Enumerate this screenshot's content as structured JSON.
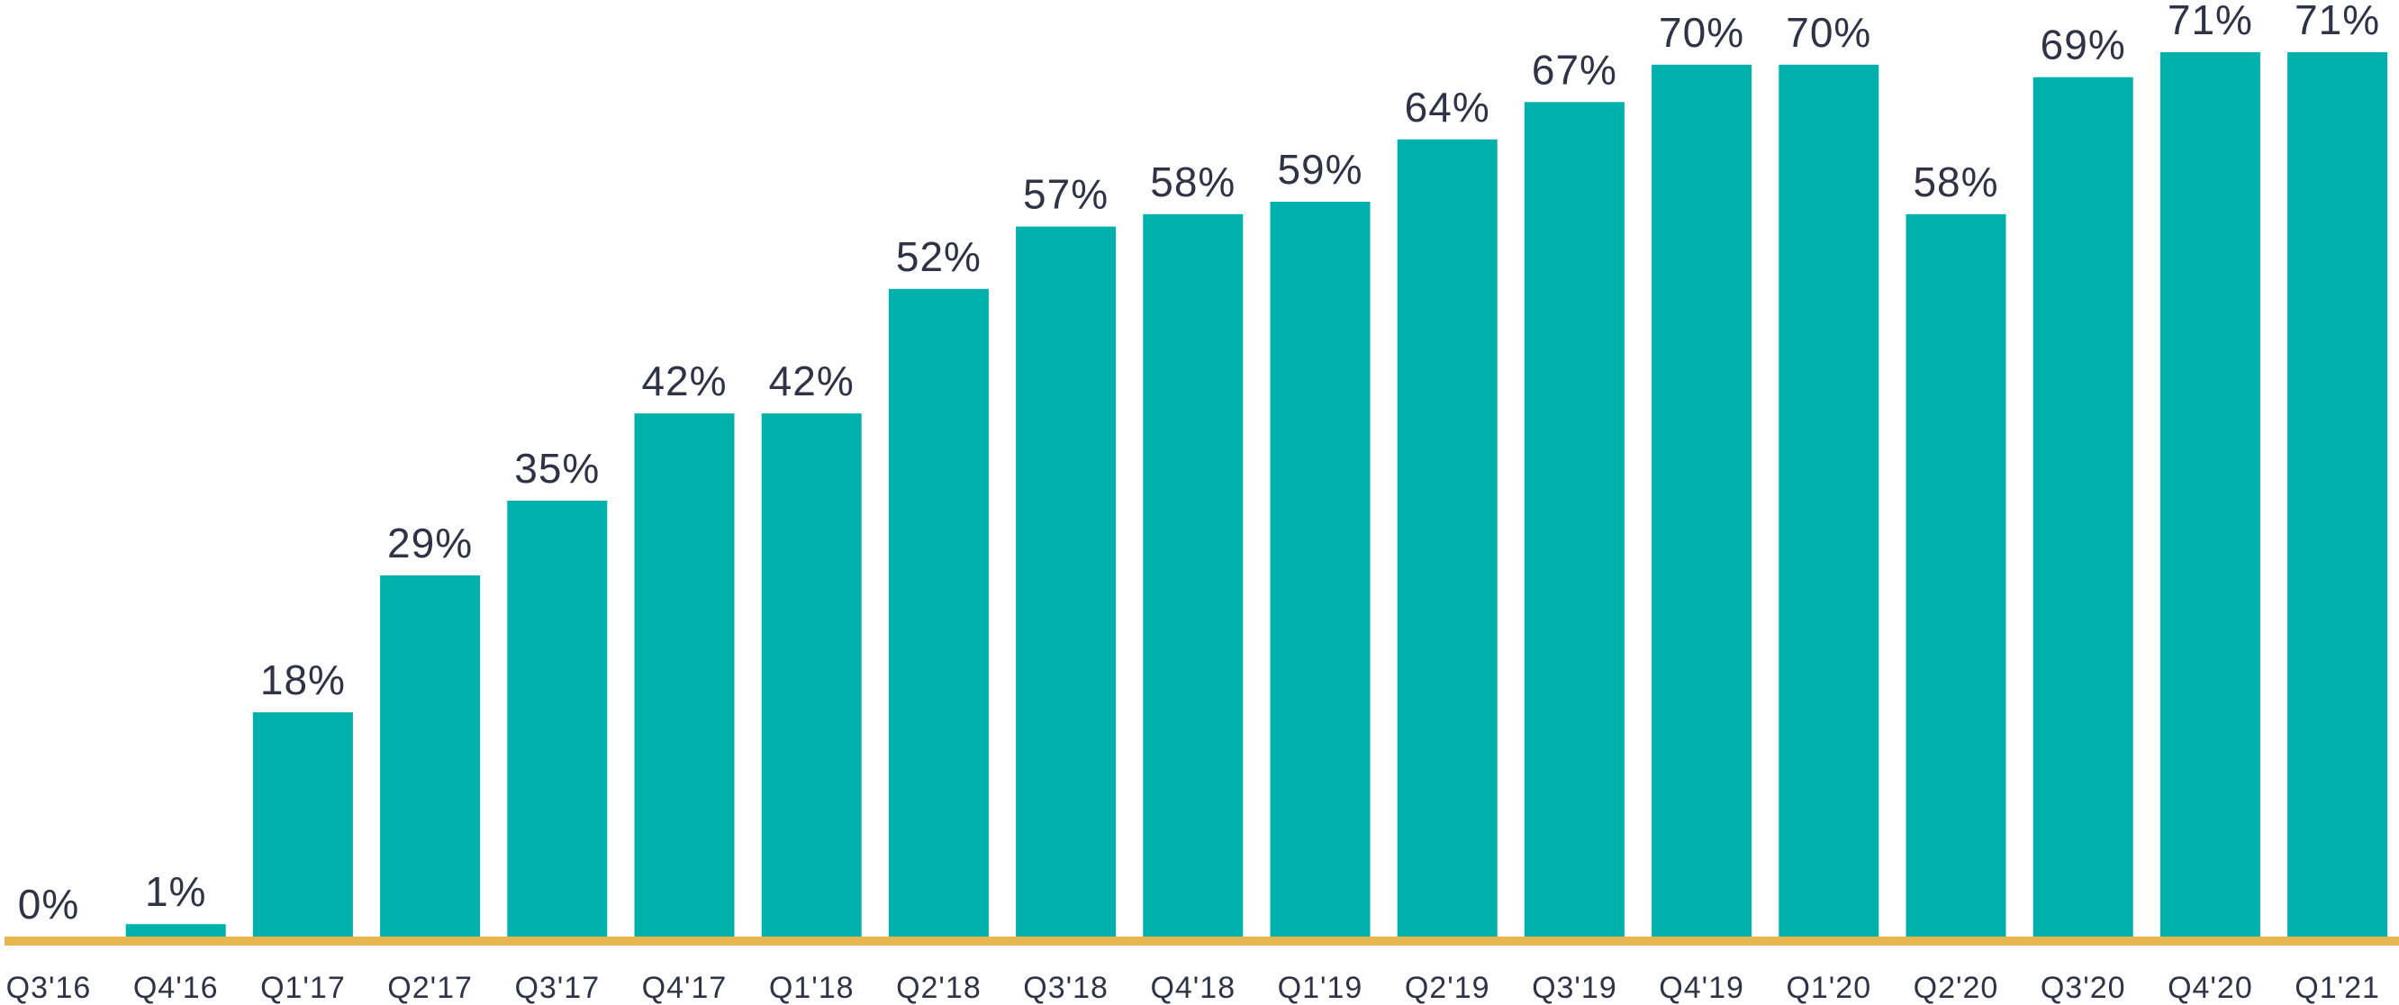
{
  "chart_data": {
    "type": "bar",
    "categories": [
      "Q3'16",
      "Q4'16",
      "Q1'17",
      "Q2'17",
      "Q3'17",
      "Q4'17",
      "Q1'18",
      "Q2'18",
      "Q3'18",
      "Q4'18",
      "Q1'19",
      "Q2'19",
      "Q3'19",
      "Q4'19",
      "Q1'20",
      "Q2'20",
      "Q3'20",
      "Q4'20",
      "Q1'21"
    ],
    "values": [
      0,
      1,
      18,
      29,
      35,
      42,
      42,
      52,
      57,
      58,
      59,
      64,
      67,
      70,
      70,
      58,
      69,
      71,
      71
    ],
    "value_labels": [
      "0%",
      "1%",
      "18%",
      "29%",
      "35%",
      "42%",
      "42%",
      "52%",
      "57%",
      "58%",
      "59%",
      "64%",
      "67%",
      "70%",
      "70%",
      "58%",
      "69%",
      "71%",
      "71%"
    ],
    "title": "",
    "xlabel": "",
    "ylabel": "",
    "ylim": [
      0,
      71
    ],
    "grid": false,
    "legend": "none",
    "colors": {
      "bar": "#00b0aa",
      "baseline": "#e8b64e",
      "text": "#2f3345"
    }
  }
}
